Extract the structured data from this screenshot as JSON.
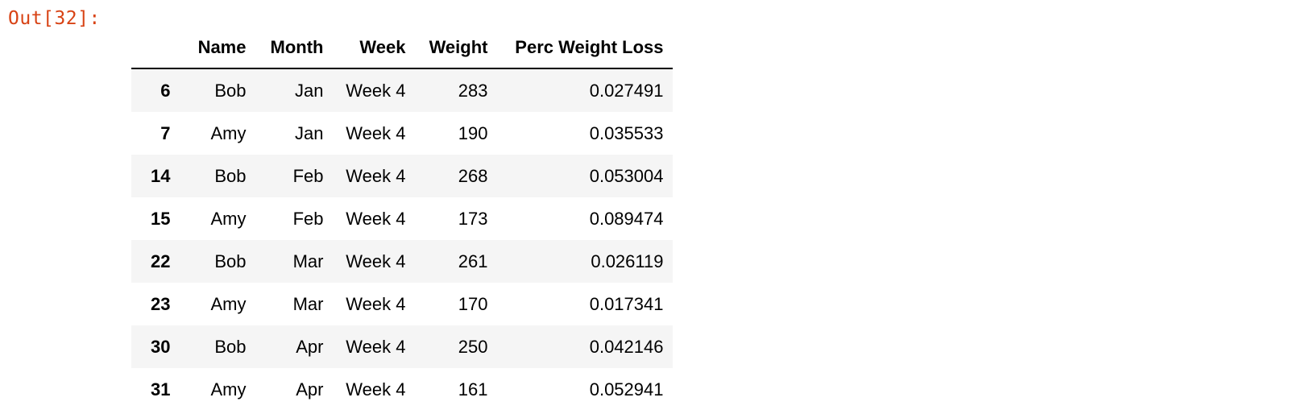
{
  "cell": {
    "prompt": "Out[32]:"
  },
  "table": {
    "columns": [
      "Name",
      "Month",
      "Week",
      "Weight",
      "Perc Weight Loss"
    ],
    "rows": [
      {
        "index": "6",
        "cells": [
          "Bob",
          "Jan",
          "Week 4",
          "283",
          "0.027491"
        ]
      },
      {
        "index": "7",
        "cells": [
          "Amy",
          "Jan",
          "Week 4",
          "190",
          "0.035533"
        ]
      },
      {
        "index": "14",
        "cells": [
          "Bob",
          "Feb",
          "Week 4",
          "268",
          "0.053004"
        ]
      },
      {
        "index": "15",
        "cells": [
          "Amy",
          "Feb",
          "Week 4",
          "173",
          "0.089474"
        ]
      },
      {
        "index": "22",
        "cells": [
          "Bob",
          "Mar",
          "Week 4",
          "261",
          "0.026119"
        ]
      },
      {
        "index": "23",
        "cells": [
          "Amy",
          "Mar",
          "Week 4",
          "170",
          "0.017341"
        ]
      },
      {
        "index": "30",
        "cells": [
          "Bob",
          "Apr",
          "Week 4",
          "250",
          "0.042146"
        ]
      },
      {
        "index": "31",
        "cells": [
          "Amy",
          "Apr",
          "Week 4",
          "161",
          "0.052941"
        ]
      }
    ]
  },
  "colors": {
    "prompt": "#d84315",
    "stripe": "#f5f5f5"
  }
}
